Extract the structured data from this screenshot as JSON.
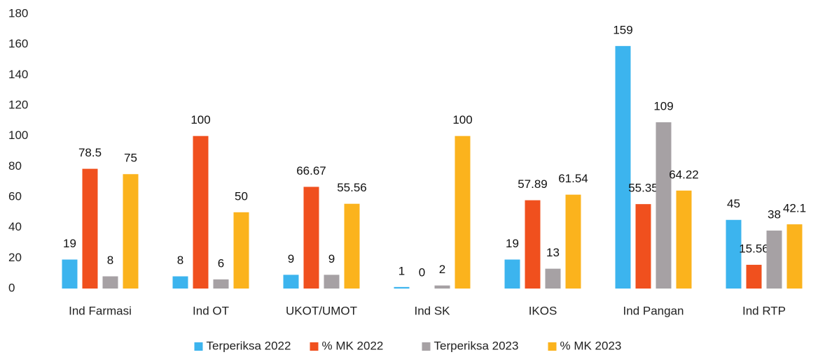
{
  "chart_data": {
    "type": "bar",
    "categories": [
      "Ind Farmasi",
      "Ind OT",
      "UKOT/UMOT",
      "Ind SK",
      "IKOS",
      "Ind Pangan",
      "Ind RTP"
    ],
    "series": [
      {
        "name": "Terperiksa 2022",
        "color": "#3cb4ee",
        "values": [
          19,
          8,
          9,
          1,
          19,
          159,
          45
        ]
      },
      {
        "name": "% MK 2022",
        "color": "#f0501e",
        "values": [
          78.5,
          100,
          66.67,
          0,
          57.89,
          55.35,
          15.56
        ]
      },
      {
        "name": "Terperiksa 2023",
        "color": "#a6a1a4",
        "values": [
          8,
          6,
          9,
          2,
          13,
          109,
          38
        ]
      },
      {
        "name": "% MK 2023",
        "color": "#fbb31d",
        "values": [
          75,
          50,
          55.56,
          100,
          61.54,
          64.22,
          42.1
        ]
      }
    ],
    "ylim": [
      0,
      180
    ],
    "yticks": [
      0,
      20,
      40,
      60,
      80,
      100,
      120,
      140,
      160,
      180
    ],
    "grid": false,
    "legend": "bottom"
  }
}
